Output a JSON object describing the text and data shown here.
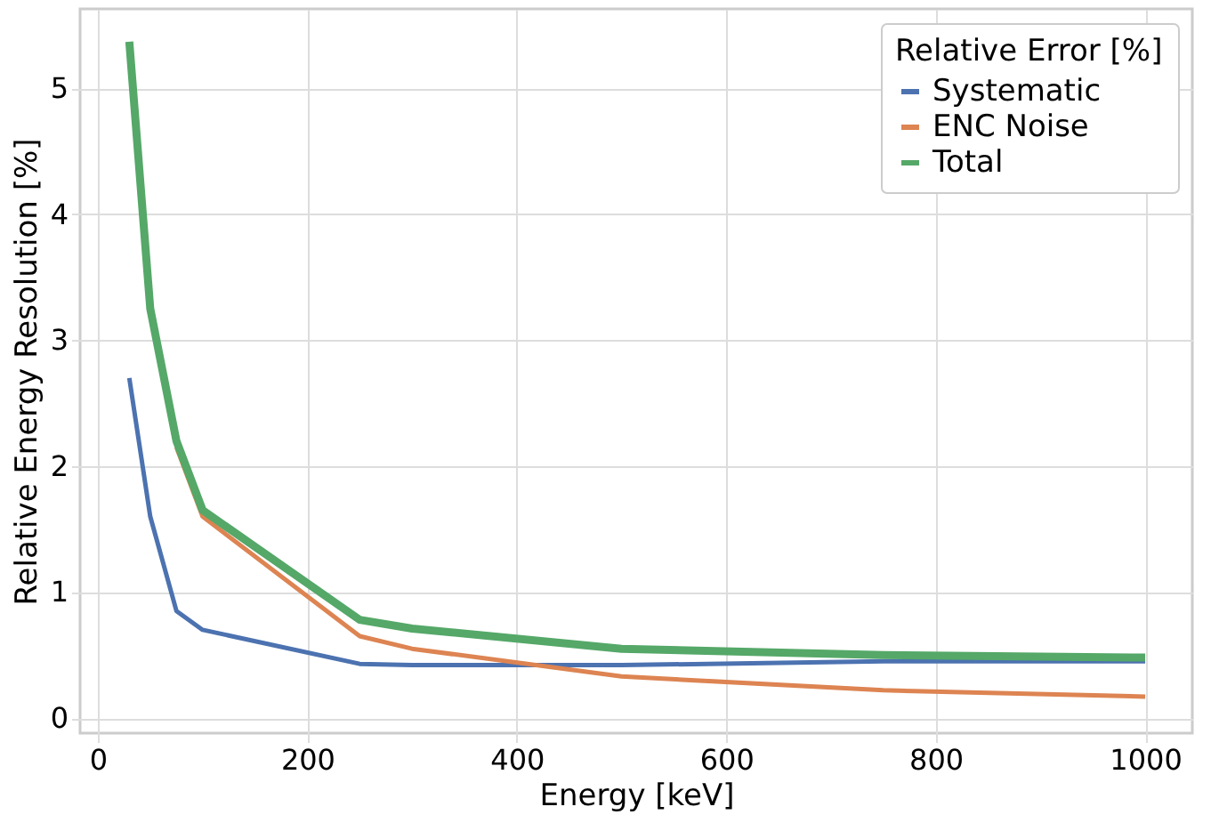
{
  "chart_data": {
    "type": "line",
    "xlabel": "Energy [keV]",
    "ylabel": "Relative Energy Resolution [%]",
    "legend_title": "Relative Error [%]",
    "x": [
      30,
      50,
      75,
      100,
      250,
      300,
      500,
      750,
      1000
    ],
    "series": [
      {
        "name": "Systematic",
        "color": "#4c72b0",
        "values": [
          2.7,
          1.6,
          0.85,
          0.7,
          0.43,
          0.42,
          0.42,
          0.45,
          0.45
        ]
      },
      {
        "name": "ENC Noise",
        "color": "#dd8452",
        "values": [
          null,
          null,
          2.15,
          1.6,
          0.65,
          0.55,
          0.33,
          0.22,
          0.17
        ]
      },
      {
        "name": "Total",
        "color": "#55a868",
        "values": [
          5.37,
          3.25,
          2.2,
          1.65,
          0.78,
          0.71,
          0.55,
          0.5,
          0.48
        ]
      }
    ],
    "xlim": [
      -17,
      1045
    ],
    "ylim": [
      -0.12,
      5.63
    ],
    "xticks": [
      0,
      200,
      400,
      600,
      800,
      1000
    ],
    "yticks": [
      0,
      1,
      2,
      3,
      4,
      5
    ],
    "grid": true,
    "legend": "top right",
    "marker": "none",
    "line_style": "solid"
  }
}
